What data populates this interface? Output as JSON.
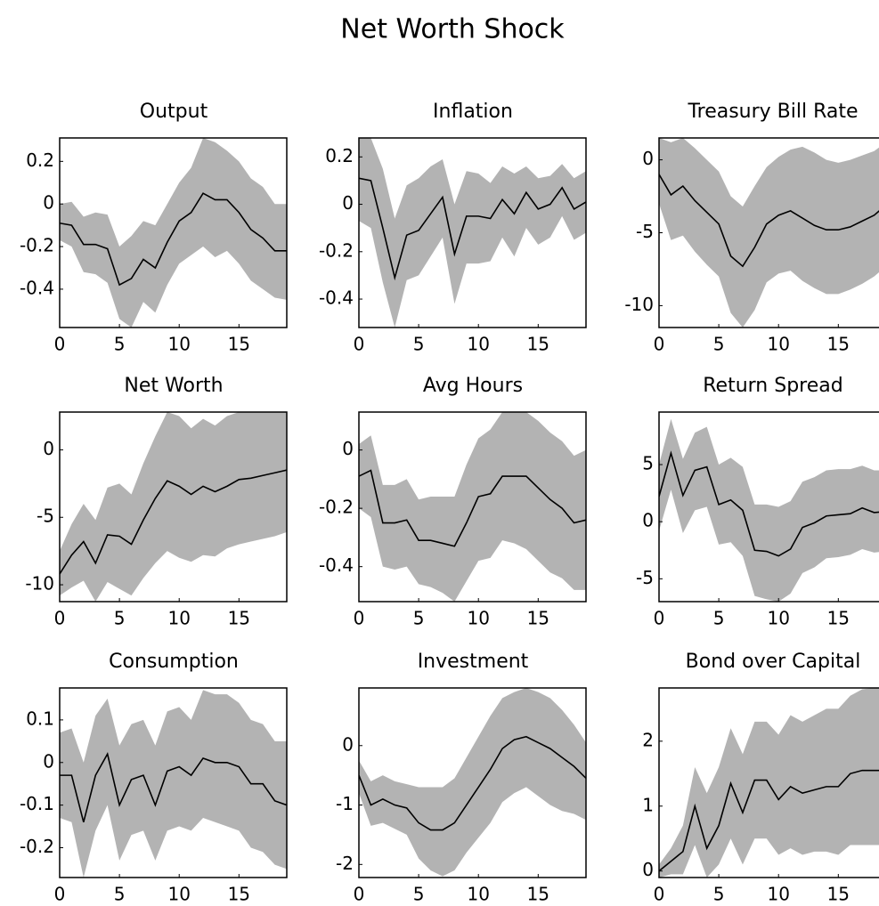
{
  "title": "Net Worth Shock",
  "chart_data": [
    {
      "type": "line",
      "title": "Output",
      "x": [
        0,
        1,
        2,
        3,
        4,
        5,
        6,
        7,
        8,
        9,
        10,
        11,
        12,
        13,
        14,
        15,
        16,
        17,
        18,
        19
      ],
      "values": [
        -0.09,
        -0.1,
        -0.19,
        -0.19,
        -0.21,
        -0.38,
        -0.35,
        -0.26,
        -0.3,
        -0.18,
        -0.08,
        -0.04,
        0.05,
        0.02,
        0.02,
        -0.04,
        -0.12,
        -0.16,
        -0.22,
        -0.22
      ],
      "upper": [
        0.0,
        0.01,
        -0.06,
        -0.04,
        -0.05,
        -0.2,
        -0.15,
        -0.08,
        -0.1,
        0.0,
        0.1,
        0.17,
        0.31,
        0.29,
        0.25,
        0.2,
        0.12,
        0.08,
        0.0,
        0.0
      ],
      "lower": [
        -0.17,
        -0.2,
        -0.32,
        -0.33,
        -0.37,
        -0.54,
        -0.58,
        -0.46,
        -0.51,
        -0.38,
        -0.28,
        -0.24,
        -0.2,
        -0.25,
        -0.22,
        -0.28,
        -0.36,
        -0.4,
        -0.44,
        -0.45
      ],
      "color": "#000000",
      "band_color": "#b3b3b3",
      "xlim": [
        0,
        19
      ],
      "xticks": [
        0,
        5,
        10,
        15
      ],
      "ylim": [
        -0.58,
        0.31
      ],
      "yticks": [
        -0.4,
        -0.2,
        0,
        0.2
      ]
    },
    {
      "type": "line",
      "title": "Inflation",
      "x": [
        0,
        1,
        2,
        3,
        4,
        5,
        6,
        7,
        8,
        9,
        10,
        11,
        12,
        13,
        14,
        15,
        16,
        17,
        18,
        19
      ],
      "values": [
        0.11,
        0.1,
        -0.1,
        -0.31,
        -0.13,
        -0.11,
        -0.04,
        0.03,
        -0.21,
        -0.05,
        -0.05,
        -0.06,
        0.02,
        -0.04,
        0.05,
        -0.02,
        0.0,
        0.07,
        -0.02,
        0.01
      ],
      "upper": [
        0.28,
        0.28,
        0.15,
        -0.06,
        0.08,
        0.11,
        0.16,
        0.19,
        0.0,
        0.14,
        0.13,
        0.09,
        0.16,
        0.13,
        0.16,
        0.11,
        0.12,
        0.17,
        0.11,
        0.14
      ],
      "lower": [
        -0.07,
        -0.1,
        -0.33,
        -0.52,
        -0.32,
        -0.3,
        -0.22,
        -0.14,
        -0.42,
        -0.25,
        -0.25,
        -0.24,
        -0.14,
        -0.22,
        -0.1,
        -0.17,
        -0.14,
        -0.05,
        -0.15,
        -0.12
      ],
      "color": "#000000",
      "band_color": "#b3b3b3",
      "xlim": [
        0,
        19
      ],
      "xticks": [
        0,
        5,
        10,
        15
      ],
      "ylim": [
        -0.52,
        0.28
      ],
      "yticks": [
        -0.4,
        -0.2,
        0,
        0.2
      ]
    },
    {
      "type": "line",
      "title": "Treasury Bill Rate",
      "x": [
        0,
        1,
        2,
        3,
        4,
        5,
        6,
        7,
        8,
        9,
        10,
        11,
        12,
        13,
        14,
        15,
        16,
        17,
        18,
        19
      ],
      "values": [
        -1,
        -2.4,
        -1.8,
        -2.8,
        -3.6,
        -4.4,
        -6.6,
        -7.3,
        -6,
        -4.4,
        -3.8,
        -3.5,
        -4,
        -4.5,
        -4.8,
        -4.8,
        -4.6,
        -4.2,
        -3.8,
        -3.1
      ],
      "upper": [
        1.5,
        1.2,
        1.5,
        0.8,
        0,
        -0.8,
        -2.5,
        -3.2,
        -1.8,
        -0.5,
        0.2,
        0.7,
        0.9,
        0.5,
        0,
        -0.2,
        0,
        0.3,
        0.6,
        1.2
      ],
      "lower": [
        -3,
        -5.5,
        -5.2,
        -6.3,
        -7.2,
        -8,
        -10.5,
        -11.5,
        -10.3,
        -8.4,
        -7.8,
        -7.6,
        -8.3,
        -8.8,
        -9.2,
        -9.2,
        -8.9,
        -8.5,
        -8,
        -7.3
      ],
      "color": "#000000",
      "band_color": "#b3b3b3",
      "xlim": [
        0,
        19
      ],
      "xticks": [
        0,
        5,
        10,
        15
      ],
      "ylim": [
        -11.5,
        1.5
      ],
      "yticks": [
        -10,
        -5,
        0
      ]
    },
    {
      "type": "line",
      "title": "Net Worth",
      "x": [
        0,
        1,
        2,
        3,
        4,
        5,
        6,
        7,
        8,
        9,
        10,
        11,
        12,
        13,
        14,
        15,
        16,
        17,
        18,
        19
      ],
      "values": [
        -9.2,
        -7.8,
        -6.8,
        -8.4,
        -6.3,
        -6.4,
        -7,
        -5.2,
        -3.6,
        -2.3,
        -2.7,
        -3.3,
        -2.7,
        -3.1,
        -2.7,
        -2.2,
        -2.1,
        -1.9,
        -1.7,
        -1.5
      ],
      "upper": [
        -7.5,
        -5.5,
        -4,
        -5.2,
        -2.8,
        -2.5,
        -3.3,
        -1,
        1,
        2.8,
        2.5,
        1.6,
        2.3,
        1.8,
        2.5,
        2.8,
        2.8,
        2.8,
        2.8,
        2.8
      ],
      "lower": [
        -10.8,
        -10.2,
        -9.7,
        -11.25,
        -9.8,
        -10.3,
        -10.8,
        -9.5,
        -8.4,
        -7.5,
        -8,
        -8.3,
        -7.8,
        -7.9,
        -7.3,
        -7,
        -6.8,
        -6.6,
        -6.4,
        -6.1
      ],
      "color": "#000000",
      "band_color": "#b3b3b3",
      "xlim": [
        0,
        19
      ],
      "xticks": [
        0,
        5,
        10,
        15
      ],
      "ylim": [
        -11.25,
        2.8
      ],
      "yticks": [
        -10,
        -5,
        0
      ]
    },
    {
      "type": "line",
      "title": "Avg Hours",
      "x": [
        0,
        1,
        2,
        3,
        4,
        5,
        6,
        7,
        8,
        9,
        10,
        11,
        12,
        13,
        14,
        15,
        16,
        17,
        18,
        19
      ],
      "values": [
        -0.09,
        -0.07,
        -0.25,
        -0.25,
        -0.24,
        -0.31,
        -0.31,
        -0.32,
        -0.33,
        -0.25,
        -0.16,
        -0.15,
        -0.09,
        -0.09,
        -0.09,
        -0.13,
        -0.17,
        -0.2,
        -0.25,
        -0.24
      ],
      "upper": [
        0.02,
        0.05,
        -0.12,
        -0.12,
        -0.1,
        -0.17,
        -0.16,
        -0.16,
        -0.16,
        -0.05,
        0.04,
        0.07,
        0.13,
        0.13,
        0.13,
        0.1,
        0.06,
        0.03,
        -0.02,
        0.0
      ],
      "lower": [
        -0.2,
        -0.23,
        -0.4,
        -0.41,
        -0.4,
        -0.46,
        -0.47,
        -0.49,
        -0.52,
        -0.45,
        -0.38,
        -0.37,
        -0.31,
        -0.32,
        -0.34,
        -0.38,
        -0.42,
        -0.44,
        -0.48,
        -0.48
      ],
      "color": "#000000",
      "band_color": "#b3b3b3",
      "xlim": [
        0,
        19
      ],
      "xticks": [
        0,
        5,
        10,
        15
      ],
      "ylim": [
        -0.52,
        0.13
      ],
      "yticks": [
        -0.4,
        -0.2,
        0
      ]
    },
    {
      "type": "line",
      "title": "Return Spread",
      "x": [
        0,
        1,
        2,
        3,
        4,
        5,
        6,
        7,
        8,
        9,
        10,
        11,
        12,
        13,
        14,
        15,
        16,
        17,
        18,
        19
      ],
      "values": [
        2.2,
        6,
        2.3,
        4.5,
        4.8,
        1.5,
        1.9,
        1,
        -2.5,
        -2.6,
        -3,
        -2.4,
        -0.5,
        -0.1,
        0.5,
        0.6,
        0.7,
        1.2,
        0.8,
        0.9
      ],
      "upper": [
        5,
        9,
        5.5,
        7.8,
        8.3,
        5,
        5.6,
        4.8,
        1.5,
        1.5,
        1.3,
        1.8,
        3.5,
        3.9,
        4.5,
        4.6,
        4.6,
        4.9,
        4.5,
        4.5
      ],
      "lower": [
        -0.8,
        2.8,
        -1,
        1,
        1.3,
        -2,
        -1.8,
        -3,
        -6.5,
        -6.8,
        -7,
        -6.3,
        -4.5,
        -4,
        -3.2,
        -3.1,
        -2.9,
        -2.4,
        -2.7,
        -2.6
      ],
      "color": "#000000",
      "band_color": "#b3b3b3",
      "xlim": [
        0,
        19
      ],
      "xticks": [
        0,
        5,
        10,
        15
      ],
      "ylim": [
        -7,
        9.6
      ],
      "yticks": [
        -5,
        0,
        5
      ]
    },
    {
      "type": "line",
      "title": "Consumption",
      "x": [
        0,
        1,
        2,
        3,
        4,
        5,
        6,
        7,
        8,
        9,
        10,
        11,
        12,
        13,
        14,
        15,
        16,
        17,
        18,
        19
      ],
      "values": [
        -0.03,
        -0.03,
        -0.14,
        -0.03,
        0.02,
        -0.1,
        -0.04,
        -0.03,
        -0.1,
        -0.02,
        -0.01,
        -0.03,
        0.01,
        0.0,
        0.0,
        -0.01,
        -0.05,
        -0.05,
        -0.09,
        -0.1
      ],
      "upper": [
        0.07,
        0.08,
        0.0,
        0.11,
        0.15,
        0.04,
        0.09,
        0.1,
        0.04,
        0.12,
        0.13,
        0.1,
        0.17,
        0.16,
        0.16,
        0.14,
        0.1,
        0.09,
        0.05,
        0.05
      ],
      "lower": [
        -0.13,
        -0.14,
        -0.27,
        -0.16,
        -0.1,
        -0.23,
        -0.17,
        -0.16,
        -0.23,
        -0.16,
        -0.15,
        -0.16,
        -0.13,
        -0.14,
        -0.15,
        -0.16,
        -0.2,
        -0.21,
        -0.24,
        -0.25
      ],
      "color": "#000000",
      "band_color": "#b3b3b3",
      "xlim": [
        0,
        19
      ],
      "xticks": [
        0,
        5,
        10,
        15
      ],
      "ylim": [
        -0.27,
        0.175
      ],
      "yticks": [
        -0.2,
        -0.1,
        0,
        0.1
      ]
    },
    {
      "type": "line",
      "title": "Investment",
      "x": [
        0,
        1,
        2,
        3,
        4,
        5,
        6,
        7,
        8,
        9,
        10,
        11,
        12,
        13,
        14,
        15,
        16,
        17,
        18,
        19
      ],
      "values": [
        -0.5,
        -1,
        -0.9,
        -1,
        -1.05,
        -1.3,
        -1.42,
        -1.42,
        -1.3,
        -1,
        -0.7,
        -0.4,
        -0.05,
        0.1,
        0.15,
        0.05,
        -0.05,
        -0.2,
        -0.35,
        -0.55
      ],
      "upper": [
        -0.25,
        -0.6,
        -0.5,
        -0.6,
        -0.65,
        -0.7,
        -0.7,
        -0.7,
        -0.55,
        -0.2,
        0.15,
        0.5,
        0.8,
        0.9,
        0.97,
        0.9,
        0.8,
        0.6,
        0.35,
        0.05
      ],
      "lower": [
        -0.8,
        -1.35,
        -1.3,
        -1.4,
        -1.5,
        -1.9,
        -2.1,
        -2.2,
        -2.1,
        -1.8,
        -1.55,
        -1.3,
        -0.95,
        -0.8,
        -0.7,
        -0.85,
        -1,
        -1.1,
        -1.15,
        -1.25
      ],
      "color": "#000000",
      "band_color": "#b3b3b3",
      "xlim": [
        0,
        19
      ],
      "xticks": [
        0,
        5,
        10,
        15
      ],
      "ylim": [
        -2.22,
        0.97
      ],
      "yticks": [
        -2,
        -1,
        0
      ]
    },
    {
      "type": "line",
      "title": "Bond over Capital",
      "x": [
        0,
        1,
        2,
        3,
        4,
        5,
        6,
        7,
        8,
        9,
        10,
        11,
        12,
        13,
        14,
        15,
        16,
        17,
        18,
        19
      ],
      "values": [
        0,
        0.15,
        0.3,
        1,
        0.35,
        0.7,
        1.35,
        0.9,
        1.4,
        1.4,
        1.1,
        1.3,
        1.2,
        1.25,
        1.3,
        1.3,
        1.5,
        1.55,
        1.55,
        1.55
      ],
      "upper": [
        0.1,
        0.35,
        0.7,
        1.6,
        1.2,
        1.6,
        2.2,
        1.8,
        2.3,
        2.3,
        2.1,
        2.4,
        2.3,
        2.4,
        2.5,
        2.5,
        2.7,
        2.8,
        2.82,
        2.82
      ],
      "lower": [
        -0.1,
        -0.05,
        -0.05,
        0.4,
        -0.1,
        0.1,
        0.5,
        0.1,
        0.5,
        0.5,
        0.25,
        0.35,
        0.25,
        0.3,
        0.3,
        0.25,
        0.4,
        0.4,
        0.4,
        0.4
      ],
      "color": "#000000",
      "band_color": "#b3b3b3",
      "xlim": [
        0,
        19
      ],
      "xticks": [
        0,
        5,
        10,
        15
      ],
      "ylim": [
        -0.1,
        2.82
      ],
      "yticks": [
        0,
        1,
        2
      ]
    }
  ]
}
